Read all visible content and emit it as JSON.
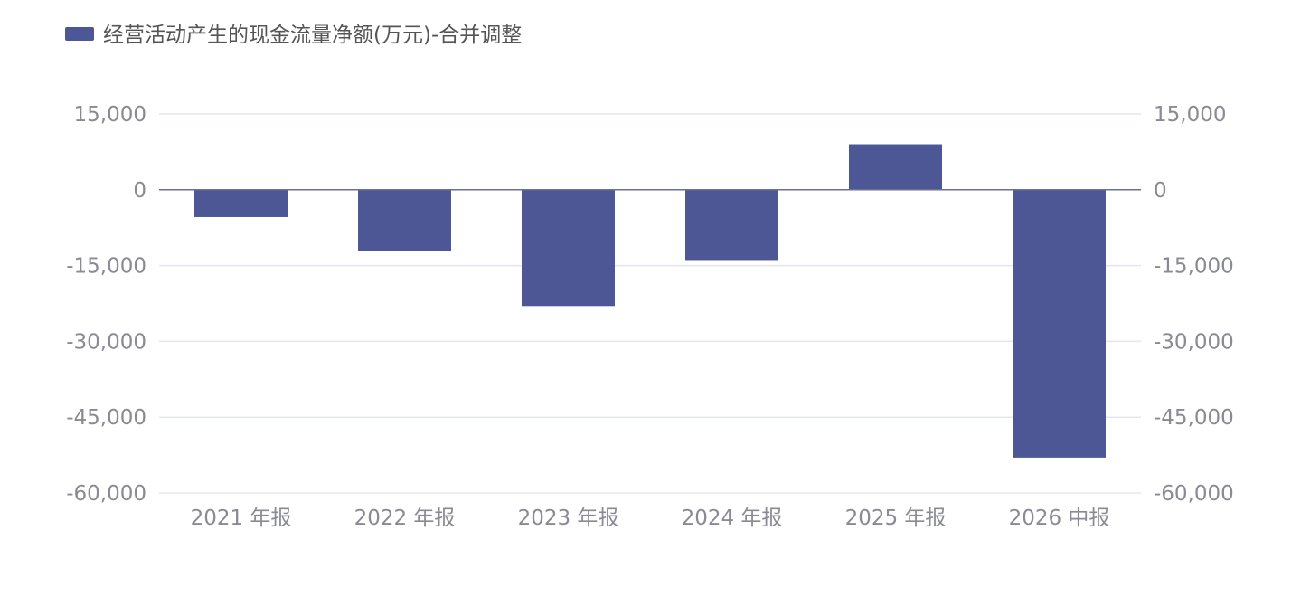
{
  "chart_data": {
    "type": "bar",
    "legend": {
      "position": "top-left",
      "entries": [
        "经营活动产生的现金流量净额(万元)-合并调整"
      ]
    },
    "categories": [
      "2021 年报",
      "2022 年报",
      "2023 年报",
      "2024 年报",
      "2025 年报",
      "2026 中报"
    ],
    "series": [
      {
        "name": "经营活动产生的现金流量净额(万元)-合并调整",
        "color": "#4d5796",
        "values": [
          -5400,
          -12200,
          -23000,
          -13900,
          9000,
          -53000
        ]
      }
    ],
    "y_axis": {
      "ylim": [
        -60000,
        15000
      ],
      "ticks": [
        15000,
        0,
        -15000,
        -30000,
        -45000,
        -60000
      ],
      "tick_labels": [
        "15,000",
        "0",
        "-15,000",
        "-30,000",
        "-45,000",
        "-60,000"
      ]
    },
    "y2_axis": {
      "ylim": [
        -60000,
        15000
      ],
      "ticks": [
        15000,
        0,
        -15000,
        -30000,
        -45000,
        -60000
      ],
      "tick_labels": [
        "15,000",
        "0",
        "-15,000",
        "-30,000",
        "-45,000",
        "-60,000"
      ]
    },
    "grid": true,
    "colors": {
      "bar": "#4d5796",
      "grid": "#e3e8f0",
      "zero_line": "#6d7192",
      "tick_text": "#8a8a94"
    }
  }
}
